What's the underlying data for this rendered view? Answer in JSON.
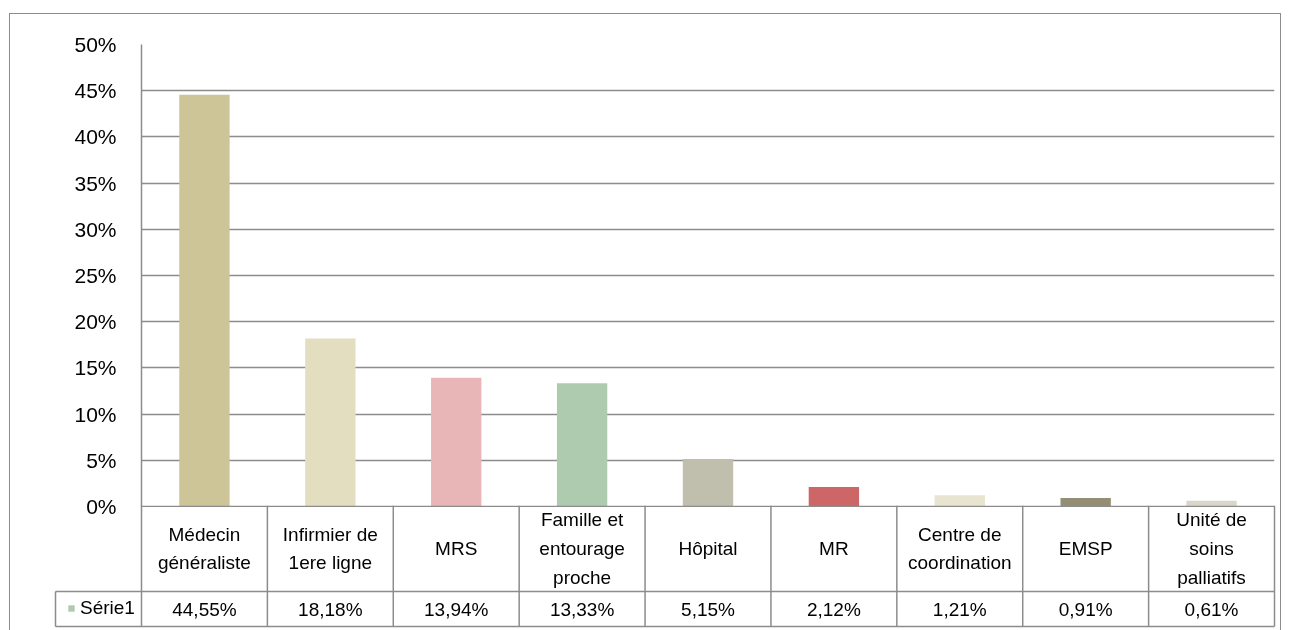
{
  "chart_data": {
    "type": "bar",
    "categories": [
      "Médecin généraliste",
      "Infirmier de 1ere ligne",
      "MRS",
      "Famille et entourage proche",
      "Hôpital",
      "MR",
      "Centre de coordination",
      "EMSP",
      "Unité de soins palliatifs"
    ],
    "series": [
      {
        "name": "Série1",
        "color": "#afcbaf",
        "colors": [
          "#cdc597",
          "#e4dec0",
          "#e8b6b6",
          "#afcbaf",
          "#c0bead",
          "#cd6666",
          "#e8e4cf",
          "#948f74",
          "#d8d7ca"
        ],
        "values": [
          44.55,
          18.18,
          13.94,
          13.33,
          5.15,
          2.12,
          1.21,
          0.91,
          0.61
        ],
        "value_labels": [
          "44,55%",
          "18,18%",
          "13,94%",
          "13,33%",
          "5,15%",
          "2,12%",
          "1,21%",
          "0,91%",
          "0,61%"
        ]
      }
    ],
    "ylim": [
      0,
      50
    ],
    "yticks": [
      {
        "value": 0,
        "label": "0%"
      },
      {
        "value": 5,
        "label": "5%"
      },
      {
        "value": 10,
        "label": "10%"
      },
      {
        "value": 15,
        "label": "15%"
      },
      {
        "value": 20,
        "label": "20%"
      },
      {
        "value": 25,
        "label": "25%"
      },
      {
        "value": 30,
        "label": "30%"
      },
      {
        "value": 35,
        "label": "35%"
      },
      {
        "value": 40,
        "label": "40%"
      },
      {
        "value": 45,
        "label": "45%"
      },
      {
        "value": 50,
        "label": "50%"
      }
    ],
    "grid": "y",
    "legend": "bottom left"
  }
}
